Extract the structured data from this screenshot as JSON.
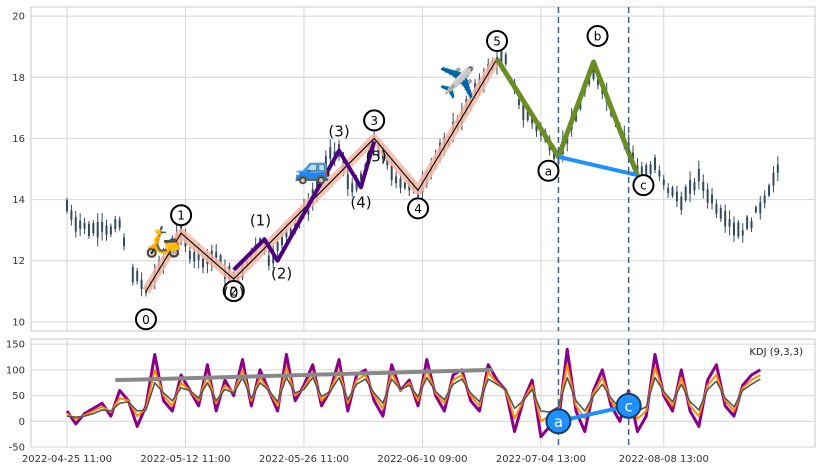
{
  "chart_data": [
    {
      "type": "candlestick",
      "panel": "price",
      "ylim": [
        9.7,
        20.3
      ],
      "yticks": [
        10,
        12,
        14,
        16,
        18,
        20
      ],
      "grid": true,
      "candle_color": "#34495e",
      "price_path": [
        [
          0,
          13.8
        ],
        [
          2,
          13.3
        ],
        [
          4,
          13.1
        ],
        [
          6,
          13.05
        ],
        [
          8,
          13.2
        ],
        [
          10,
          12.95
        ],
        [
          12,
          13.2
        ],
        [
          14,
          11.9
        ],
        [
          16,
          11.4
        ],
        [
          18,
          11.0
        ],
        [
          20,
          11.5
        ],
        [
          22,
          12.0
        ],
        [
          24,
          12.6
        ],
        [
          26,
          12.9
        ],
        [
          28,
          12.3
        ],
        [
          30,
          12.1
        ],
        [
          32,
          12.0
        ],
        [
          34,
          12.2
        ],
        [
          36,
          11.7
        ],
        [
          38,
          11.4
        ],
        [
          40,
          11.6
        ],
        [
          42,
          12.2
        ],
        [
          44,
          12.7
        ],
        [
          46,
          12.1
        ],
        [
          48,
          12.4
        ],
        [
          50,
          12.9
        ],
        [
          52,
          13.2
        ],
        [
          54,
          13.6
        ],
        [
          56,
          14.1
        ],
        [
          58,
          14.8
        ],
        [
          60,
          15.4
        ],
        [
          62,
          15.6
        ],
        [
          64,
          14.6
        ],
        [
          66,
          14.4
        ],
        [
          68,
          15.0
        ],
        [
          70,
          16.0
        ],
        [
          72,
          15.4
        ],
        [
          74,
          14.9
        ],
        [
          76,
          14.6
        ],
        [
          78,
          14.4
        ],
        [
          80,
          14.3
        ],
        [
          82,
          14.8
        ],
        [
          84,
          15.3
        ],
        [
          86,
          15.7
        ],
        [
          88,
          16.3
        ],
        [
          90,
          16.8
        ],
        [
          92,
          17.2
        ],
        [
          94,
          17.8
        ],
        [
          96,
          18.2
        ],
        [
          98,
          18.6
        ],
        [
          100,
          18.5
        ],
        [
          102,
          17.6
        ],
        [
          104,
          16.9
        ],
        [
          106,
          16.6
        ],
        [
          108,
          16.2
        ],
        [
          110,
          15.9
        ],
        [
          112,
          15.4
        ],
        [
          114,
          16.0
        ],
        [
          116,
          16.8
        ],
        [
          118,
          17.6
        ],
        [
          120,
          18.1
        ],
        [
          122,
          17.7
        ],
        [
          124,
          17.0
        ],
        [
          126,
          16.4
        ],
        [
          128,
          15.7
        ],
        [
          130,
          15.0
        ],
        [
          132,
          14.9
        ],
        [
          134,
          15.1
        ],
        [
          136,
          14.5
        ],
        [
          138,
          14.2
        ],
        [
          140,
          14.0
        ],
        [
          142,
          14.3
        ],
        [
          144,
          14.7
        ],
        [
          146,
          14.2
        ],
        [
          148,
          13.8
        ],
        [
          150,
          13.5
        ],
        [
          152,
          13.1
        ],
        [
          154,
          13.0
        ],
        [
          156,
          13.3
        ],
        [
          158,
          13.8
        ],
        [
          160,
          14.4
        ],
        [
          162,
          14.9
        ]
      ],
      "elliott_waves": [
        {
          "style": "primary",
          "color": "#f5b7a5",
          "points": [
            [
              18,
              11.0
            ],
            [
              26,
              12.9
            ],
            [
              38,
              11.4
            ],
            [
              70,
              16.0
            ],
            [
              80,
              14.3
            ],
            [
              98,
              18.6
            ]
          ],
          "labels": [
            "0",
            "1",
            "2",
            "3",
            "4",
            "5"
          ]
        },
        {
          "style": "secondary",
          "color": "#4b0082",
          "points": [
            [
              38,
              11.7
            ],
            [
              45,
              12.7
            ],
            [
              48,
              12.0
            ],
            [
              62,
              15.6
            ],
            [
              67,
              14.4
            ],
            [
              70,
              15.9
            ]
          ],
          "labels": [
            "(0)",
            "(1)",
            "(2)",
            "(3)",
            "(4)",
            "(5)"
          ]
        },
        {
          "style": "correction",
          "color": "#6b8e23",
          "points": [
            [
              98,
              18.6
            ],
            [
              112,
              15.4
            ],
            [
              120,
              18.5
            ],
            [
              130,
              14.8
            ]
          ],
          "labels": [
            "a",
            "b",
            "c"
          ]
        },
        {
          "style": "trendline",
          "color": "#1e90ff",
          "points": [
            [
              112,
              15.4
            ],
            [
              130,
              14.8
            ]
          ]
        }
      ],
      "markers": [
        {
          "icon": "scooter-icon",
          "glyph": "🛵",
          "x": 22,
          "y": 12.3
        },
        {
          "icon": "car-icon",
          "glyph": "🚙",
          "x": 56,
          "y": 14.7
        },
        {
          "icon": "airplane-icon",
          "glyph": "✈️",
          "x": 89,
          "y": 17.5
        }
      ],
      "vlines": [
        {
          "x": 112,
          "color": "#4a6080",
          "style": "dashed"
        },
        {
          "x": 128,
          "color": "#4a6080",
          "style": "dashed"
        }
      ]
    },
    {
      "type": "line",
      "panel": "indicator",
      "legend": "KDJ (9,3,3)",
      "legend_position": "top-right",
      "ylim": [
        -50,
        160
      ],
      "yticks": [
        -50,
        0,
        50,
        100,
        150
      ],
      "grid": true,
      "x_tick_labels": [
        "2022-04-25 11:00",
        "2022-05-12 11:00",
        "2022-05-26 11:00",
        "2022-06-10 09:00",
        "2022-07-04 13:00",
        "2022-08-08 13:00"
      ],
      "x_tick_positions": [
        0,
        27,
        54,
        81,
        108,
        136
      ],
      "series": [
        {
          "color": "#8b008b",
          "values": [
            20,
            -5,
            15,
            25,
            35,
            10,
            60,
            40,
            -10,
            30,
            130,
            40,
            20,
            90,
            60,
            30,
            110,
            20,
            80,
            50,
            120,
            30,
            100,
            60,
            20,
            130,
            40,
            70,
            110,
            30,
            60,
            120,
            20,
            90,
            100,
            40,
            10,
            110,
            60,
            80,
            30,
            120,
            50,
            20,
            90,
            100,
            40,
            20,
            110,
            80,
            60,
            -20,
            40,
            80,
            -30,
            -10,
            0,
            140,
            20,
            -20,
            60,
            100,
            30,
            0,
            60,
            -20,
            10,
            130,
            50,
            20,
            100,
            20,
            -10,
            80,
            110,
            30,
            10,
            70,
            90,
            100
          ]
        },
        {
          "color": "#ff8c00",
          "values": [
            15,
            5,
            12,
            20,
            28,
            18,
            45,
            40,
            10,
            25,
            100,
            50,
            30,
            75,
            60,
            40,
            90,
            35,
            70,
            55,
            100,
            40,
            85,
            60,
            30,
            105,
            50,
            65,
            95,
            40,
            60,
            100,
            35,
            80,
            90,
            50,
            25,
            95,
            60,
            75,
            40,
            100,
            55,
            35,
            80,
            90,
            50,
            30,
            95,
            75,
            60,
            5,
            40,
            70,
            0,
            10,
            20,
            110,
            30,
            5,
            55,
            85,
            40,
            15,
            55,
            5,
            20,
            105,
            55,
            30,
            85,
            30,
            10,
            70,
            90,
            40,
            20,
            65,
            80,
            90
          ]
        },
        {
          "color": "#555555",
          "values": [
            10,
            8,
            10,
            15,
            22,
            20,
            35,
            38,
            20,
            22,
            75,
            55,
            40,
            65,
            60,
            45,
            75,
            40,
            62,
            55,
            85,
            45,
            75,
            60,
            38,
            85,
            55,
            62,
            85,
            48,
            58,
            85,
            42,
            72,
            82,
            55,
            35,
            82,
            62,
            70,
            48,
            85,
            58,
            42,
            72,
            82,
            55,
            38,
            82,
            72,
            62,
            25,
            40,
            62,
            20,
            18,
            28,
            85,
            40,
            20,
            50,
            72,
            45,
            25,
            50,
            20,
            28,
            85,
            58,
            38,
            72,
            38,
            22,
            62,
            78,
            45,
            28,
            60,
            72,
            82
          ]
        }
      ],
      "trendlines": [
        {
          "color": "#888888",
          "points": [
            [
              11,
              80
            ],
            [
              97,
              100
            ]
          ]
        },
        {
          "color": "#1e90ff",
          "points": [
            [
              112,
              0
            ],
            [
              128,
              30
            ]
          ],
          "labels": [
            "a",
            "c"
          ]
        }
      ],
      "vlines": [
        {
          "x": 112,
          "color": "#4a6080",
          "style": "dashed"
        },
        {
          "x": 128,
          "color": "#4a6080",
          "style": "dashed"
        }
      ]
    }
  ]
}
